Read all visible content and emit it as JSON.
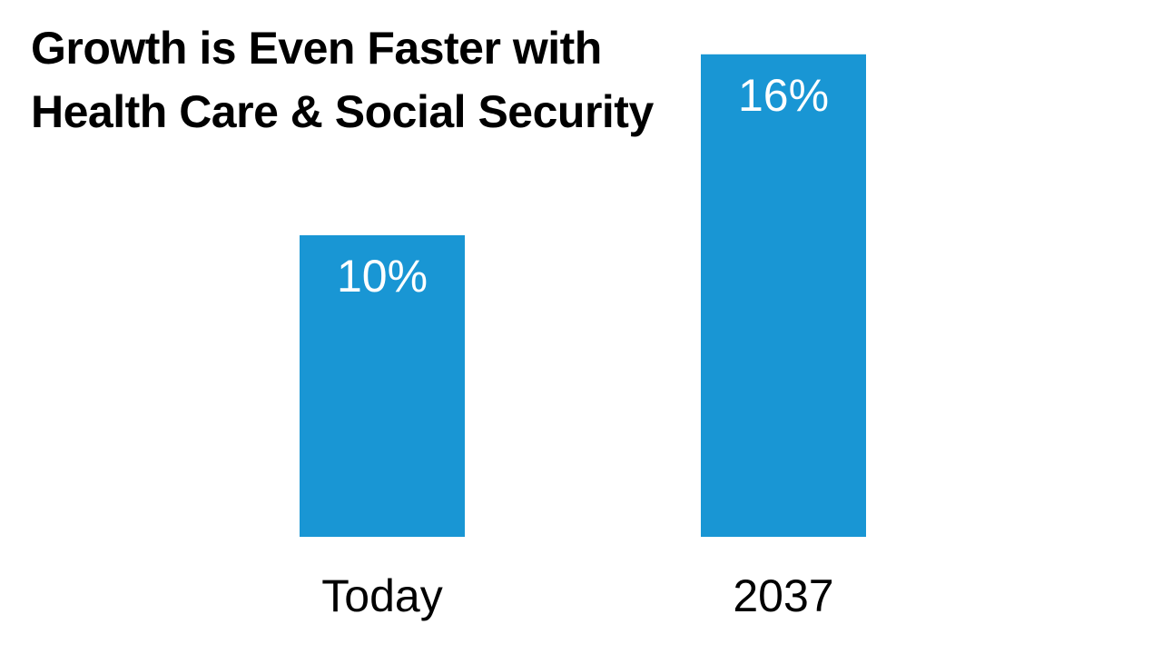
{
  "title_lines": [
    "Growth is Even Faster with",
    "Health Care & Social Security"
  ],
  "colors": {
    "bar": "#1996d4",
    "bar_label": "#ffffff",
    "text": "#000000",
    "background": "#ffffff"
  },
  "chart_data": {
    "type": "bar",
    "title": "Growth is Even Faster with Health Care & Social Security",
    "categories": [
      "Today",
      "2037"
    ],
    "values": [
      10,
      16
    ],
    "value_labels": [
      "10%",
      "16%"
    ],
    "xlabel": "",
    "ylabel": "",
    "grid": false,
    "legend": "none"
  }
}
